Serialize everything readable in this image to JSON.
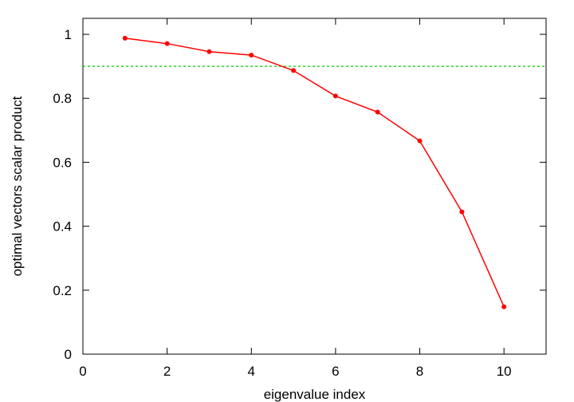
{
  "chart_data": {
    "type": "line",
    "title": "",
    "xlabel": "eigenvalue index",
    "ylabel": "optimal vectors scalar product",
    "xlim": [
      0,
      11
    ],
    "ylim": [
      0,
      1.05
    ],
    "x_ticks": [
      0,
      2,
      4,
      6,
      8,
      10
    ],
    "y_ticks": [
      0,
      0.2,
      0.4,
      0.6,
      0.8,
      1
    ],
    "x_tick_labels": [
      "0",
      "2",
      "4",
      "6",
      "8",
      "10"
    ],
    "y_tick_labels": [
      "0",
      "0.2",
      "0.4",
      "0.6",
      "0.8",
      "1"
    ],
    "grid": false,
    "series": [
      {
        "color": "#ff0000",
        "marker": "circle",
        "x": [
          1,
          2,
          3,
          4,
          5,
          6,
          7,
          8,
          9,
          10
        ],
        "y": [
          0.988,
          0.971,
          0.946,
          0.935,
          0.887,
          0.807,
          0.757,
          0.667,
          0.445,
          0.148
        ]
      }
    ],
    "reference_lines": [
      {
        "orientation": "horizontal",
        "y": 0.9,
        "color": "#00cc00",
        "style": "dashed"
      }
    ]
  }
}
